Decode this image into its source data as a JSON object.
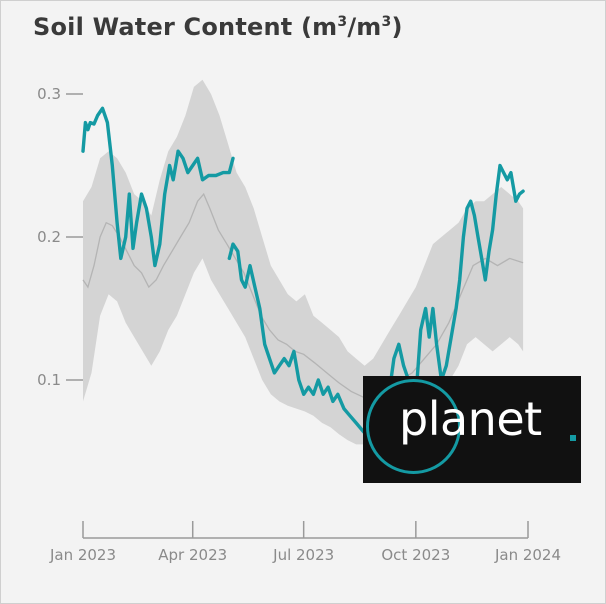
{
  "chart_data": {
    "type": "line",
    "title": "Soil Water Content (m",
    "title_sup1": "3",
    "title_mid": "/m",
    "title_sup2": "3",
    "title_end": ")",
    "xlabel": "",
    "ylabel": "",
    "x_ticks": [
      "Jan 2023",
      "Apr 2023",
      "Jul 2023",
      "Oct 2023",
      "Jan 2024"
    ],
    "x_tick_dates": [
      "2023-01-01",
      "2023-04-01",
      "2023-07-01",
      "2023-10-01",
      "2024-01-01"
    ],
    "y_ticks": [
      {
        "value": 0.1,
        "label": "0.1"
      },
      {
        "value": 0.2,
        "label": "0.2"
      },
      {
        "value": 0.3,
        "label": "0.3"
      }
    ],
    "xlim": [
      "2023-01-01",
      "2024-01-01"
    ],
    "ylim": [
      0.0,
      0.32
    ],
    "grid": false,
    "series": [
      {
        "color": "#149aa3",
        "data": [
          [
            "2023-01-01",
            0.26
          ],
          [
            "2023-01-03",
            0.28
          ],
          [
            "2023-01-05",
            0.275
          ],
          [
            "2023-01-07",
            0.28
          ],
          [
            "2023-01-10",
            0.279
          ],
          [
            "2023-01-13",
            0.285
          ],
          [
            "2023-01-17",
            0.29
          ],
          [
            "2023-01-21",
            0.28
          ],
          [
            "2023-01-25",
            0.25
          ],
          [
            "2023-01-29",
            0.21
          ],
          [
            "2023-02-01",
            0.185
          ],
          [
            "2023-02-05",
            0.2
          ],
          [
            "2023-02-08",
            0.23
          ],
          [
            "2023-02-11",
            0.192
          ],
          [
            "2023-02-14",
            0.21
          ],
          [
            "2023-02-18",
            0.23
          ],
          [
            "2023-02-22",
            0.22
          ],
          [
            "2023-02-26",
            0.2
          ],
          [
            "2023-03-01",
            0.18
          ],
          [
            "2023-03-05",
            0.195
          ],
          [
            "2023-03-09",
            0.23
          ],
          [
            "2023-03-13",
            0.25
          ],
          [
            "2023-03-16",
            0.24
          ],
          [
            "2023-03-20",
            0.26
          ],
          [
            "2023-03-24",
            0.255
          ],
          [
            "2023-03-28",
            0.245
          ],
          [
            "2023-04-01",
            0.25
          ],
          [
            "2023-04-05",
            0.255
          ],
          [
            "2023-04-09",
            0.24
          ],
          [
            "2023-04-14",
            0.243
          ],
          [
            "2023-04-20",
            0.243
          ],
          [
            "2023-04-26",
            0.245
          ],
          [
            "2023-05-01",
            0.245
          ],
          [
            "2023-05-04",
            0.255
          ],
          null,
          [
            "2023-05-01",
            0.185
          ],
          [
            "2023-05-04",
            0.195
          ],
          [
            "2023-05-08",
            0.19
          ],
          [
            "2023-05-11",
            0.17
          ],
          [
            "2023-05-14",
            0.165
          ],
          [
            "2023-05-18",
            0.18
          ],
          [
            "2023-05-22",
            0.165
          ],
          [
            "2023-05-26",
            0.15
          ],
          [
            "2023-05-30",
            0.125
          ],
          [
            "2023-06-03",
            0.115
          ],
          [
            "2023-06-07",
            0.105
          ],
          [
            "2023-06-11",
            0.11
          ],
          [
            "2023-06-15",
            0.115
          ],
          [
            "2023-06-19",
            0.11
          ],
          [
            "2023-06-23",
            0.12
          ],
          [
            "2023-06-27",
            0.1
          ],
          [
            "2023-07-01",
            0.09
          ],
          [
            "2023-07-05",
            0.095
          ],
          [
            "2023-07-09",
            0.09
          ],
          [
            "2023-07-13",
            0.1
          ],
          [
            "2023-07-17",
            0.09
          ],
          [
            "2023-07-21",
            0.095
          ],
          [
            "2023-07-25",
            0.085
          ],
          [
            "2023-07-29",
            0.09
          ],
          [
            "2023-08-03",
            0.08
          ],
          [
            "2023-08-08",
            0.075
          ],
          [
            "2023-08-13",
            0.07
          ],
          [
            "2023-08-18",
            0.065
          ],
          [
            "2023-08-23",
            0.06
          ],
          [
            "2023-08-28",
            0.065
          ],
          [
            "2023-09-01",
            0.075
          ],
          [
            "2023-09-05",
            0.085
          ],
          [
            "2023-09-09",
            0.09
          ],
          [
            "2023-09-13",
            0.115
          ],
          [
            "2023-09-17",
            0.125
          ],
          [
            "2023-09-21",
            0.11
          ],
          [
            "2023-09-25",
            0.1
          ],
          [
            "2023-09-29",
            0.09
          ],
          [
            "2023-10-02",
            0.1
          ],
          [
            "2023-10-05",
            0.135
          ],
          [
            "2023-10-09",
            0.15
          ],
          [
            "2023-10-12",
            0.13
          ],
          [
            "2023-10-15",
            0.15
          ],
          [
            "2023-10-18",
            0.125
          ],
          [
            "2023-10-22",
            0.1
          ],
          [
            "2023-10-26",
            0.11
          ],
          [
            "2023-10-30",
            0.13
          ],
          [
            "2023-11-03",
            0.15
          ],
          [
            "2023-11-06",
            0.17
          ],
          [
            "2023-11-09",
            0.2
          ],
          [
            "2023-11-12",
            0.22
          ],
          [
            "2023-11-15",
            0.225
          ],
          [
            "2023-11-18",
            0.215
          ],
          [
            "2023-11-21",
            0.2
          ],
          [
            "2023-11-24",
            0.185
          ],
          [
            "2023-11-27",
            0.17
          ],
          [
            "2023-11-30",
            0.19
          ],
          [
            "2023-12-03",
            0.205
          ],
          [
            "2023-12-06",
            0.23
          ],
          [
            "2023-12-09",
            0.25
          ],
          [
            "2023-12-12",
            0.245
          ],
          [
            "2023-12-15",
            0.24
          ],
          [
            "2023-12-18",
            0.245
          ],
          [
            "2023-12-22",
            0.225
          ],
          [
            "2023-12-25",
            0.23
          ],
          [
            "2023-12-28",
            0.232
          ]
        ]
      },
      {
        "color": "#b4b4b4",
        "data": [
          [
            "2023-01-01",
            0.17
          ],
          [
            "2023-01-05",
            0.165
          ],
          [
            "2023-01-10",
            0.18
          ],
          [
            "2023-01-15",
            0.2
          ],
          [
            "2023-01-20",
            0.21
          ],
          [
            "2023-01-25",
            0.208
          ],
          [
            "2023-01-31",
            0.2
          ],
          [
            "2023-02-06",
            0.19
          ],
          [
            "2023-02-12",
            0.18
          ],
          [
            "2023-02-18",
            0.175
          ],
          [
            "2023-02-24",
            0.165
          ],
          [
            "2023-03-02",
            0.17
          ],
          [
            "2023-03-08",
            0.18
          ],
          [
            "2023-03-15",
            0.19
          ],
          [
            "2023-03-22",
            0.2
          ],
          [
            "2023-03-29",
            0.21
          ],
          [
            "2023-04-05",
            0.225
          ],
          [
            "2023-04-10",
            0.23
          ],
          [
            "2023-04-15",
            0.22
          ],
          [
            "2023-04-22",
            0.205
          ],
          [
            "2023-04-29",
            0.195
          ],
          [
            "2023-05-06",
            0.185
          ],
          [
            "2023-05-13",
            0.175
          ],
          [
            "2023-05-20",
            0.16
          ],
          [
            "2023-05-27",
            0.145
          ],
          [
            "2023-06-03",
            0.135
          ],
          [
            "2023-06-10",
            0.128
          ],
          [
            "2023-06-17",
            0.125
          ],
          [
            "2023-06-24",
            0.12
          ],
          [
            "2023-07-01",
            0.118
          ],
          [
            "2023-07-10",
            0.112
          ],
          [
            "2023-07-20",
            0.105
          ],
          [
            "2023-07-30",
            0.098
          ],
          [
            "2023-08-09",
            0.092
          ],
          [
            "2023-08-19",
            0.088
          ],
          [
            "2023-08-29",
            0.09
          ],
          [
            "2023-09-08",
            0.095
          ],
          [
            "2023-09-18",
            0.1
          ],
          [
            "2023-09-28",
            0.105
          ],
          [
            "2023-10-08",
            0.115
          ],
          [
            "2023-10-18",
            0.125
          ],
          [
            "2023-10-28",
            0.14
          ],
          [
            "2023-11-07",
            0.16
          ],
          [
            "2023-11-17",
            0.18
          ],
          [
            "2023-11-27",
            0.185
          ],
          [
            "2023-12-07",
            0.18
          ],
          [
            "2023-12-17",
            0.185
          ],
          [
            "2023-12-28",
            0.182
          ]
        ]
      }
    ],
    "band": {
      "color": "#d4d4d4",
      "data": [
        [
          "2023-01-01",
          0.085,
          0.225
        ],
        [
          "2023-01-08",
          0.105,
          0.235
        ],
        [
          "2023-01-15",
          0.145,
          0.255
        ],
        [
          "2023-01-22",
          0.16,
          0.26
        ],
        [
          "2023-01-29",
          0.155,
          0.255
        ],
        [
          "2023-02-05",
          0.14,
          0.245
        ],
        [
          "2023-02-12",
          0.13,
          0.23
        ],
        [
          "2023-02-19",
          0.12,
          0.225
        ],
        [
          "2023-02-26",
          0.11,
          0.215
        ],
        [
          "2023-03-05",
          0.12,
          0.24
        ],
        [
          "2023-03-12",
          0.135,
          0.26
        ],
        [
          "2023-03-19",
          0.145,
          0.27
        ],
        [
          "2023-03-26",
          0.16,
          0.285
        ],
        [
          "2023-04-02",
          0.175,
          0.305
        ],
        [
          "2023-04-09",
          0.185,
          0.31
        ],
        [
          "2023-04-16",
          0.17,
          0.3
        ],
        [
          "2023-04-23",
          0.16,
          0.285
        ],
        [
          "2023-04-30",
          0.15,
          0.265
        ],
        [
          "2023-05-07",
          0.14,
          0.245
        ],
        [
          "2023-05-14",
          0.13,
          0.235
        ],
        [
          "2023-05-21",
          0.115,
          0.22
        ],
        [
          "2023-05-28",
          0.1,
          0.2
        ],
        [
          "2023-06-04",
          0.09,
          0.18
        ],
        [
          "2023-06-11",
          0.085,
          0.17
        ],
        [
          "2023-06-18",
          0.082,
          0.16
        ],
        [
          "2023-06-25",
          0.08,
          0.155
        ],
        [
          "2023-07-02",
          0.078,
          0.16
        ],
        [
          "2023-07-09",
          0.075,
          0.145
        ],
        [
          "2023-07-16",
          0.07,
          0.14
        ],
        [
          "2023-07-23",
          0.067,
          0.135
        ],
        [
          "2023-07-30",
          0.062,
          0.13
        ],
        [
          "2023-08-06",
          0.058,
          0.12
        ],
        [
          "2023-08-13",
          0.055,
          0.115
        ],
        [
          "2023-08-20",
          0.055,
          0.11
        ],
        [
          "2023-08-27",
          0.06,
          0.115
        ],
        [
          "2023-09-03",
          0.065,
          0.125
        ],
        [
          "2023-09-10",
          0.07,
          0.135
        ],
        [
          "2023-09-17",
          0.075,
          0.145
        ],
        [
          "2023-09-24",
          0.075,
          0.155
        ],
        [
          "2023-10-01",
          0.08,
          0.165
        ],
        [
          "2023-10-08",
          0.085,
          0.18
        ],
        [
          "2023-10-15",
          0.09,
          0.195
        ],
        [
          "2023-10-22",
          0.095,
          0.2
        ],
        [
          "2023-10-29",
          0.1,
          0.205
        ],
        [
          "2023-11-05",
          0.11,
          0.21
        ],
        [
          "2023-11-12",
          0.125,
          0.22
        ],
        [
          "2023-11-19",
          0.13,
          0.225
        ],
        [
          "2023-11-26",
          0.125,
          0.225
        ],
        [
          "2023-12-03",
          0.12,
          0.23
        ],
        [
          "2023-12-10",
          0.125,
          0.235
        ],
        [
          "2023-12-17",
          0.13,
          0.23
        ],
        [
          "2023-12-24",
          0.125,
          0.225
        ],
        [
          "2023-12-28",
          0.12,
          0.22
        ]
      ]
    }
  },
  "logo": {
    "text": "planet",
    "ring_color": "#149aa3",
    "dot_color": "#149aa3"
  }
}
